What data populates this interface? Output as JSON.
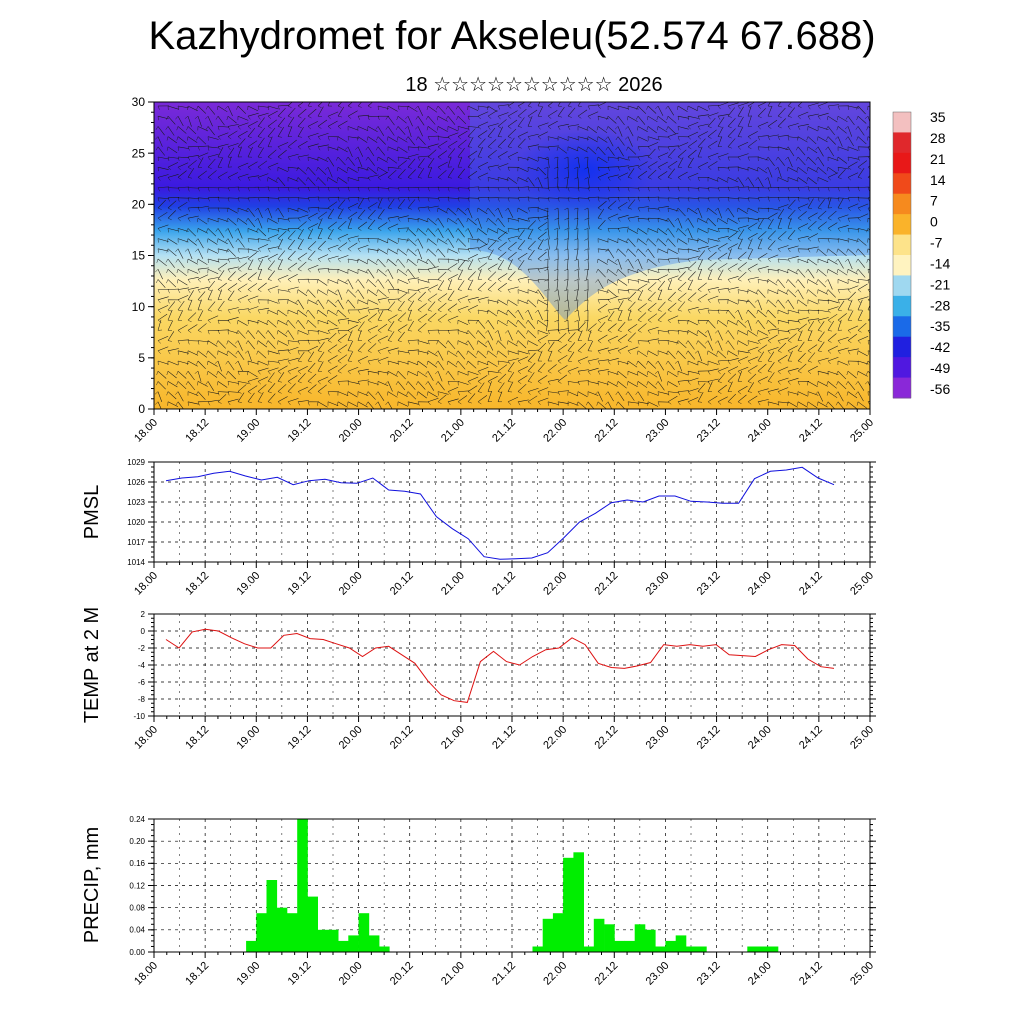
{
  "title": "Kazhydromet for Akseleu(52.574 67.688)",
  "subtitle": "18 ☆☆☆☆☆☆☆☆☆☆ 2026",
  "time_ticks": [
    "18.00",
    "18.12",
    "19.00",
    "19.12",
    "20.00",
    "20.12",
    "21.00",
    "21.12",
    "22.00",
    "22.12",
    "23.00",
    "23.12",
    "24.00",
    "24.12",
    "25.00"
  ],
  "colors": {
    "pmsl_line": "#1010dd",
    "temp_line": "#dd1010",
    "precip_bar": "#00ee00",
    "grid": "#000000"
  },
  "chart_data": [
    {
      "type": "heatmap",
      "name": "cross-section",
      "ylim": [
        0,
        30
      ],
      "yticks": [
        0,
        5,
        10,
        15,
        20,
        25,
        30
      ],
      "x": "time_ticks",
      "colorbar": {
        "labels": [
          "35",
          "28",
          "21",
          "14",
          "7",
          "0",
          "-7",
          "-14",
          "-21",
          "-28",
          "-35",
          "-42",
          "-49",
          "-56"
        ],
        "colors": [
          "#f3c0c0",
          "#e0282c",
          "#e81818",
          "#f04a1a",
          "#f68a1e",
          "#fab32a",
          "#fde38a",
          "#fff3c0",
          "#9fd8f0",
          "#3ab0e8",
          "#1a6ae8",
          "#2020e0",
          "#5018e0",
          "#8a28d8"
        ]
      }
    },
    {
      "type": "line",
      "name": "pmsl",
      "ylabel": "PMSL",
      "ylim": [
        1014,
        1029
      ],
      "yticks": [
        1014,
        1017,
        1020,
        1023,
        1026,
        1029
      ],
      "values": [
        1026.2,
        1026.6,
        1026.8,
        1027.3,
        1027.6,
        1026.9,
        1026.3,
        1026.7,
        1025.6,
        1026.2,
        1026.4,
        1025.9,
        1025.8,
        1026.6,
        1024.8,
        1024.6,
        1024.2,
        1020.8,
        1019.0,
        1017.5,
        1014.8,
        1014.4,
        1014.5,
        1014.6,
        1015.4,
        1017.6,
        1020.0,
        1021.3,
        1022.9,
        1023.3,
        1023.0,
        1023.9,
        1023.9,
        1023.1,
        1023.0,
        1022.8,
        1022.8,
        1026.5,
        1027.6,
        1027.8,
        1028.2,
        1026.6,
        1025.6
      ]
    },
    {
      "type": "line",
      "name": "temp-2m",
      "ylabel": "TEMP at 2 M",
      "ylim": [
        -10,
        2
      ],
      "yticks": [
        -10,
        -8,
        -6,
        -4,
        -2,
        0,
        2
      ],
      "values": [
        -1.0,
        -2.0,
        -0.1,
        0.2,
        0.0,
        -0.8,
        -1.5,
        -2.0,
        -2.0,
        -0.5,
        -0.3,
        -0.9,
        -1.0,
        -1.5,
        -2.0,
        -3.0,
        -2.0,
        -1.8,
        -2.8,
        -3.8,
        -5.9,
        -7.5,
        -8.2,
        -8.4,
        -3.6,
        -2.4,
        -3.6,
        -4.0,
        -3.0,
        -2.2,
        -2.0,
        -0.8,
        -1.6,
        -3.8,
        -4.3,
        -4.4,
        -4.1,
        -3.7,
        -1.6,
        -1.8,
        -1.6,
        -1.8,
        -1.6,
        -2.8,
        -2.9,
        -3.0,
        -2.2,
        -1.6,
        -1.7,
        -3.3,
        -4.2,
        -4.4
      ]
    },
    {
      "type": "bar",
      "name": "precip",
      "ylabel": "PRECIP, mm",
      "ylim": [
        0,
        0.24
      ],
      "yticks": [
        "0.00",
        "0.04",
        "0.08",
        "0.12",
        "0.16",
        "0.20",
        "0.24"
      ],
      "values": [
        0,
        0,
        0,
        0,
        0,
        0,
        0,
        0,
        0,
        0.02,
        0.07,
        0.13,
        0.08,
        0.07,
        0.24,
        0.1,
        0.04,
        0.04,
        0.02,
        0.03,
        0.07,
        0.03,
        0.01,
        0,
        0,
        0,
        0,
        0,
        0,
        0,
        0,
        0,
        0,
        0,
        0,
        0,
        0,
        0.01,
        0.06,
        0.07,
        0.17,
        0.18,
        0.01,
        0.06,
        0.05,
        0.02,
        0.02,
        0.05,
        0.04,
        0.01,
        0.02,
        0.03,
        0.01,
        0.01,
        0,
        0,
        0,
        0,
        0.01,
        0.01,
        0.01,
        0,
        0,
        0,
        0,
        0,
        0,
        0,
        0,
        0
      ]
    }
  ]
}
